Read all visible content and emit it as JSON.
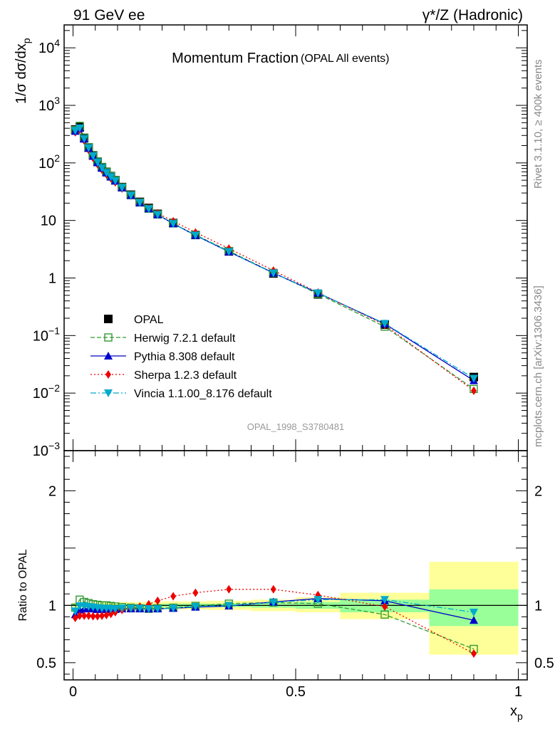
{
  "header": {
    "left_label": "91 GeV ee",
    "right_label": "γ*/Z (Hadronic)"
  },
  "side_labels": {
    "rivet": "Rivet 3.1.10, ≥ 400k events",
    "mcplots": "mcplots.cern.ch [arXiv:1306.3436]"
  },
  "chart_data": [
    {
      "panel": "main",
      "type": "scatter",
      "title": "Momentum Fraction",
      "title_suffix": "(OPAL All events)",
      "ylabel_parts": {
        "a": "1/σ dσ/dx",
        "sub": "p"
      },
      "analysis_id": "OPAL_1998_S3780481",
      "yscale": "log",
      "xlim": [
        -0.02,
        1.02
      ],
      "ylim": [
        0.001,
        25000
      ],
      "yticks": [
        {
          "v": 10000,
          "base": "10",
          "exp": "4"
        },
        {
          "v": 1000,
          "base": "10",
          "exp": "3"
        },
        {
          "v": 100,
          "base": "10",
          "exp": "2"
        },
        {
          "v": 10,
          "base": "10",
          "exp": ""
        },
        {
          "v": 1,
          "base": "1",
          "exp": ""
        },
        {
          "v": 0.1,
          "base": "10",
          "exp": "−1"
        },
        {
          "v": 0.01,
          "base": "10",
          "exp": "−2"
        },
        {
          "v": 0.001,
          "base": "10",
          "exp": "−3"
        }
      ],
      "x": [
        0.005,
        0.015,
        0.025,
        0.035,
        0.045,
        0.055,
        0.065,
        0.075,
        0.085,
        0.095,
        0.11,
        0.13,
        0.15,
        0.17,
        0.19,
        0.225,
        0.275,
        0.35,
        0.45,
        0.55,
        0.7,
        0.9
      ],
      "legend": [
        "OPAL",
        "Herwig 7.2.1 default",
        "Pythia 8.308 default",
        "Sherpa 1.2.3 default",
        "Vincia 1.1.00_8.176 default"
      ],
      "series": [
        {
          "name": "OPAL",
          "color": "#000000",
          "marker": "square",
          "line": "none",
          "values": [
            380,
            420,
            270,
            185,
            135,
            105,
            84,
            70,
            59,
            50,
            38,
            28,
            21,
            16.5,
            13,
            9.0,
            5.6,
            2.9,
            1.2,
            0.52,
            0.155,
            0.019
          ]
        },
        {
          "name": "Herwig 7.2.1 default",
          "color": "#339933",
          "marker": "open-square",
          "line": "dashed",
          "values": [
            372,
            440,
            276,
            188,
            137,
            106,
            85,
            70,
            59,
            50,
            37.5,
            27.5,
            20.5,
            16.0,
            12.7,
            8.9,
            5.6,
            2.95,
            1.23,
            0.53,
            0.143,
            0.0118
          ]
        },
        {
          "name": "Pythia 8.308 default",
          "color": "#0000cc",
          "marker": "triangle-up",
          "line": "solid",
          "values": [
            355,
            400,
            260,
            180,
            131,
            101,
            81,
            67,
            57,
            48.5,
            37,
            27.2,
            20.3,
            16.0,
            12.6,
            8.8,
            5.5,
            2.85,
            1.22,
            0.55,
            0.16,
            0.0165
          ]
        },
        {
          "name": "Sherpa 1.2.3 default",
          "color": "#ee0000",
          "marker": "diamond",
          "line": "dotted",
          "values": [
            340,
            380,
            245,
            168,
            122,
            95,
            76,
            63,
            54,
            46,
            36,
            27,
            20.5,
            16.5,
            13.3,
            9.7,
            6.2,
            3.25,
            1.35,
            0.56,
            0.153,
            0.011
          ]
        },
        {
          "name": "Vincia 1.1.00_8.176 default",
          "color": "#00aacc",
          "marker": "triangle-down",
          "line": "dashdot",
          "values": [
            365,
            405,
            265,
            183,
            133,
            103,
            82,
            68,
            57.5,
            49,
            37.3,
            27.3,
            20.4,
            15.9,
            12.6,
            8.8,
            5.55,
            2.88,
            1.22,
            0.55,
            0.162,
            0.018
          ]
        }
      ]
    },
    {
      "panel": "ratio",
      "type": "scatter",
      "ylabel": "Ratio to OPAL",
      "xlabel": "x",
      "xlabel_sub": "p",
      "xlim": [
        -0.02,
        1.02
      ],
      "ylim": [
        0.35,
        2.35
      ],
      "yticks": [
        0.5,
        1,
        2
      ],
      "yticklabels": [
        "0.5",
        "1",
        "2"
      ],
      "xticks": [
        0,
        0.5,
        1
      ],
      "xticklabels": [
        "0",
        "0.5",
        "1"
      ],
      "reference": 1,
      "bands": [
        {
          "x0": 0.0,
          "x1": 0.1,
          "stat_low": 0.99,
          "stat_high": 1.01,
          "tot_low": 0.975,
          "tot_high": 1.025
        },
        {
          "x0": 0.1,
          "x1": 0.2,
          "stat_low": 0.99,
          "stat_high": 1.01,
          "tot_low": 0.97,
          "tot_high": 1.03
        },
        {
          "x0": 0.2,
          "x1": 0.3,
          "stat_low": 0.985,
          "stat_high": 1.015,
          "tot_low": 0.965,
          "tot_high": 1.035
        },
        {
          "x0": 0.3,
          "x1": 0.4,
          "stat_low": 0.985,
          "stat_high": 1.015,
          "tot_low": 0.96,
          "tot_high": 1.04
        },
        {
          "x0": 0.4,
          "x1": 0.5,
          "stat_low": 0.98,
          "stat_high": 1.02,
          "tot_low": 0.95,
          "tot_high": 1.05
        },
        {
          "x0": 0.5,
          "x1": 0.6,
          "stat_low": 0.97,
          "stat_high": 1.03,
          "tot_low": 0.94,
          "tot_high": 1.07
        },
        {
          "x0": 0.6,
          "x1": 0.8,
          "stat_low": 0.94,
          "stat_high": 1.05,
          "tot_low": 0.88,
          "tot_high": 1.11
        },
        {
          "x0": 0.8,
          "x1": 1.0,
          "stat_low": 0.82,
          "stat_high": 1.14,
          "tot_low": 0.57,
          "tot_high": 1.38
        }
      ],
      "x": [
        0.005,
        0.015,
        0.025,
        0.035,
        0.045,
        0.055,
        0.065,
        0.075,
        0.085,
        0.095,
        0.11,
        0.13,
        0.15,
        0.17,
        0.19,
        0.225,
        0.275,
        0.35,
        0.45,
        0.55,
        0.7,
        0.9
      ],
      "series": [
        {
          "name": "Herwig 7.2.1 default",
          "color": "#339933",
          "marker": "open-square",
          "line": "dashed",
          "values": [
            0.98,
            1.05,
            1.03,
            1.02,
            1.01,
            1.005,
            1.0,
            1.0,
            0.995,
            0.99,
            0.985,
            0.98,
            0.975,
            0.97,
            0.975,
            0.98,
            0.995,
            1.015,
            1.025,
            1.015,
            0.92,
            0.62
          ]
        },
        {
          "name": "Pythia 8.308 default",
          "color": "#0000cc",
          "marker": "triangle-up",
          "line": "solid",
          "values": [
            0.92,
            0.96,
            0.97,
            0.97,
            0.97,
            0.965,
            0.965,
            0.965,
            0.965,
            0.965,
            0.97,
            0.97,
            0.97,
            0.97,
            0.97,
            0.975,
            0.985,
            0.995,
            1.03,
            1.06,
            1.04,
            0.87
          ]
        },
        {
          "name": "Sherpa 1.2.3 default",
          "color": "#ee0000",
          "marker": "diamond",
          "line": "dotted",
          "values": [
            0.89,
            0.91,
            0.91,
            0.91,
            0.905,
            0.905,
            0.91,
            0.915,
            0.925,
            0.94,
            0.96,
            0.975,
            0.99,
            1.01,
            1.04,
            1.08,
            1.11,
            1.14,
            1.14,
            1.09,
            0.99,
            0.58
          ]
        },
        {
          "name": "Vincia 1.1.00_8.176 default",
          "color": "#00aacc",
          "marker": "triangle-down",
          "line": "dashdot",
          "values": [
            0.95,
            0.995,
            0.995,
            0.99,
            0.985,
            0.98,
            0.975,
            0.975,
            0.97,
            0.97,
            0.975,
            0.975,
            0.975,
            0.97,
            0.97,
            0.975,
            0.99,
            1.0,
            1.025,
            1.05,
            1.05,
            0.94
          ]
        }
      ]
    }
  ]
}
